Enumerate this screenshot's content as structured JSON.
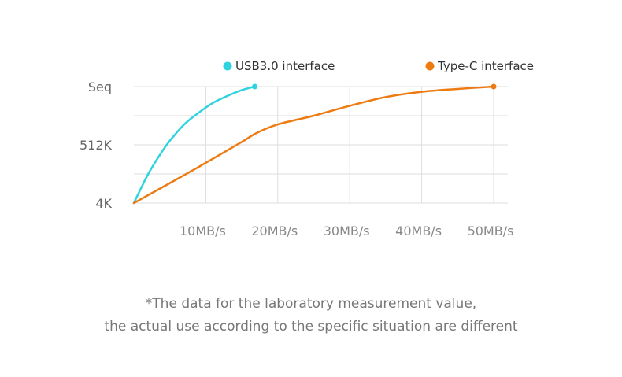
{
  "chart_data": {
    "type": "line",
    "title": "",
    "xlabel": "",
    "ylabel": "",
    "xlim": [
      0,
      50
    ],
    "x_ticks": [
      "10MB/s",
      "20MB/s",
      "30MB/s",
      "40MB/s",
      "50MB/s"
    ],
    "x_tick_values": [
      10,
      20,
      30,
      40,
      50
    ],
    "y_categories": [
      "4K",
      "512K",
      "Seq"
    ],
    "legend_position": "top",
    "grid": true,
    "series": [
      {
        "name": "USB3.0 interface",
        "color": "#2fd3e0",
        "points": [
          {
            "x": 0,
            "y": 0
          },
          {
            "x": 2,
            "y": 0.5
          },
          {
            "x": 4,
            "y": 0.9
          },
          {
            "x": 5.2,
            "y": 1.1
          },
          {
            "x": 7,
            "y": 1.35
          },
          {
            "x": 9,
            "y": 1.55
          },
          {
            "x": 11,
            "y": 1.72
          },
          {
            "x": 13,
            "y": 1.84
          },
          {
            "x": 15,
            "y": 1.94
          },
          {
            "x": 16.8,
            "y": 2.0
          }
        ]
      },
      {
        "name": "Type-C interface",
        "color": "#ee7a12",
        "points": [
          {
            "x": 0,
            "y": 0
          },
          {
            "x": 8,
            "y": 0.55
          },
          {
            "x": 15,
            "y": 1.05
          },
          {
            "x": 17,
            "y": 1.2
          },
          {
            "x": 20,
            "y": 1.35
          },
          {
            "x": 25,
            "y": 1.5
          },
          {
            "x": 30,
            "y": 1.67
          },
          {
            "x": 35,
            "y": 1.82
          },
          {
            "x": 40,
            "y": 1.91
          },
          {
            "x": 45,
            "y": 1.96
          },
          {
            "x": 50,
            "y": 2.0
          }
        ]
      }
    ]
  },
  "note": {
    "line1": "*The data for the laboratory measurement value,",
    "line2": "the actual use according to the specific situation are different"
  }
}
